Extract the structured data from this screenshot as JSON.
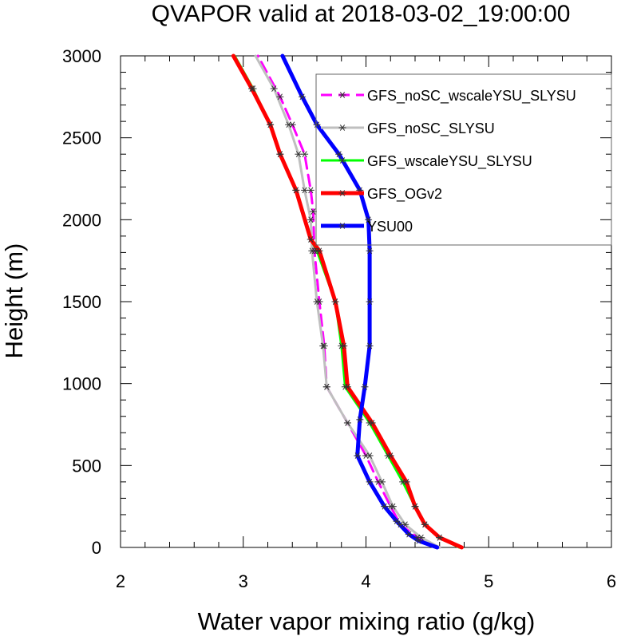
{
  "chart_data": {
    "type": "line",
    "title": "QVAPOR valid at 2018-03-02_19:00:00",
    "xlabel": "Water vapor mixing ratio (g/kg)",
    "ylabel": "Height (m)",
    "xlim": [
      2,
      6
    ],
    "ylim": [
      0,
      3000
    ],
    "x_ticks": [
      "2",
      "3",
      "4",
      "5",
      "6"
    ],
    "y_ticks": [
      "0",
      "500",
      "1000",
      "1500",
      "2000",
      "2500",
      "3000"
    ],
    "grid": false,
    "legend_position": "top-right",
    "marker": "asterisk",
    "series": [
      {
        "name": "GFS_noSC_wscaleYSU_SLYSU",
        "color": "#ff00ff",
        "dash": "dashed",
        "points": [
          [
            4.6,
            0
          ],
          [
            4.42,
            60
          ],
          [
            4.28,
            140
          ],
          [
            4.2,
            250
          ],
          [
            4.1,
            400
          ],
          [
            4.0,
            560
          ],
          [
            3.85,
            760
          ],
          [
            3.68,
            980
          ],
          [
            3.66,
            1230
          ],
          [
            3.62,
            1500
          ],
          [
            3.58,
            1810
          ],
          [
            3.57,
            2050
          ],
          [
            3.55,
            2180
          ],
          [
            3.5,
            2400
          ],
          [
            3.4,
            2580
          ],
          [
            3.3,
            2750
          ],
          [
            3.12,
            3000
          ]
        ]
      },
      {
        "name": "GFS_noSC_SLYSU",
        "color": "#bfbfbf",
        "dash": "solid",
        "points": [
          [
            4.6,
            0
          ],
          [
            4.45,
            60
          ],
          [
            4.32,
            140
          ],
          [
            4.22,
            250
          ],
          [
            4.13,
            400
          ],
          [
            4.03,
            560
          ],
          [
            3.85,
            760
          ],
          [
            3.68,
            980
          ],
          [
            3.65,
            1230
          ],
          [
            3.6,
            1500
          ],
          [
            3.56,
            1810
          ],
          [
            3.55,
            2000
          ],
          [
            3.5,
            2180
          ],
          [
            3.45,
            2400
          ],
          [
            3.37,
            2580
          ],
          [
            3.25,
            2800
          ],
          [
            3.1,
            3000
          ]
        ]
      },
      {
        "name": "GFS_wscaleYSU_SLYSU",
        "color": "#00ff00",
        "dash": "solid",
        "points": [
          [
            4.76,
            0
          ],
          [
            4.6,
            60
          ],
          [
            4.48,
            140
          ],
          [
            4.4,
            250
          ],
          [
            4.3,
            400
          ],
          [
            4.18,
            560
          ],
          [
            4.03,
            760
          ],
          [
            3.83,
            980
          ],
          [
            3.8,
            1230
          ],
          [
            3.75,
            1500
          ],
          [
            3.6,
            1810
          ],
          [
            3.55,
            1880
          ],
          [
            3.43,
            2180
          ],
          [
            3.3,
            2400
          ],
          [
            3.22,
            2580
          ],
          [
            3.08,
            2800
          ],
          [
            2.93,
            3000
          ]
        ]
      },
      {
        "name": "GFS_OGv2",
        "color": "#ff0000",
        "dash": "solid",
        "points": [
          [
            4.78,
            0
          ],
          [
            4.6,
            60
          ],
          [
            4.48,
            140
          ],
          [
            4.4,
            250
          ],
          [
            4.33,
            400
          ],
          [
            4.2,
            560
          ],
          [
            4.05,
            760
          ],
          [
            3.85,
            980
          ],
          [
            3.82,
            1230
          ],
          [
            3.75,
            1500
          ],
          [
            3.62,
            1810
          ],
          [
            3.55,
            1880
          ],
          [
            3.43,
            2180
          ],
          [
            3.3,
            2400
          ],
          [
            3.22,
            2580
          ],
          [
            3.07,
            2800
          ],
          [
            2.92,
            3000
          ]
        ]
      },
      {
        "name": "YSU00",
        "color": "#0000ff",
        "dash": "solid",
        "points": [
          [
            4.58,
            0
          ],
          [
            4.43,
            40
          ],
          [
            4.35,
            80
          ],
          [
            4.25,
            160
          ],
          [
            4.15,
            250
          ],
          [
            4.03,
            400
          ],
          [
            3.93,
            560
          ],
          [
            3.95,
            780
          ],
          [
            3.99,
            980
          ],
          [
            4.03,
            1230
          ],
          [
            4.03,
            1500
          ],
          [
            4.03,
            1810
          ],
          [
            4.02,
            2000
          ],
          [
            3.95,
            2180
          ],
          [
            3.78,
            2400
          ],
          [
            3.6,
            2580
          ],
          [
            3.48,
            2750
          ],
          [
            3.32,
            3000
          ]
        ]
      }
    ]
  }
}
